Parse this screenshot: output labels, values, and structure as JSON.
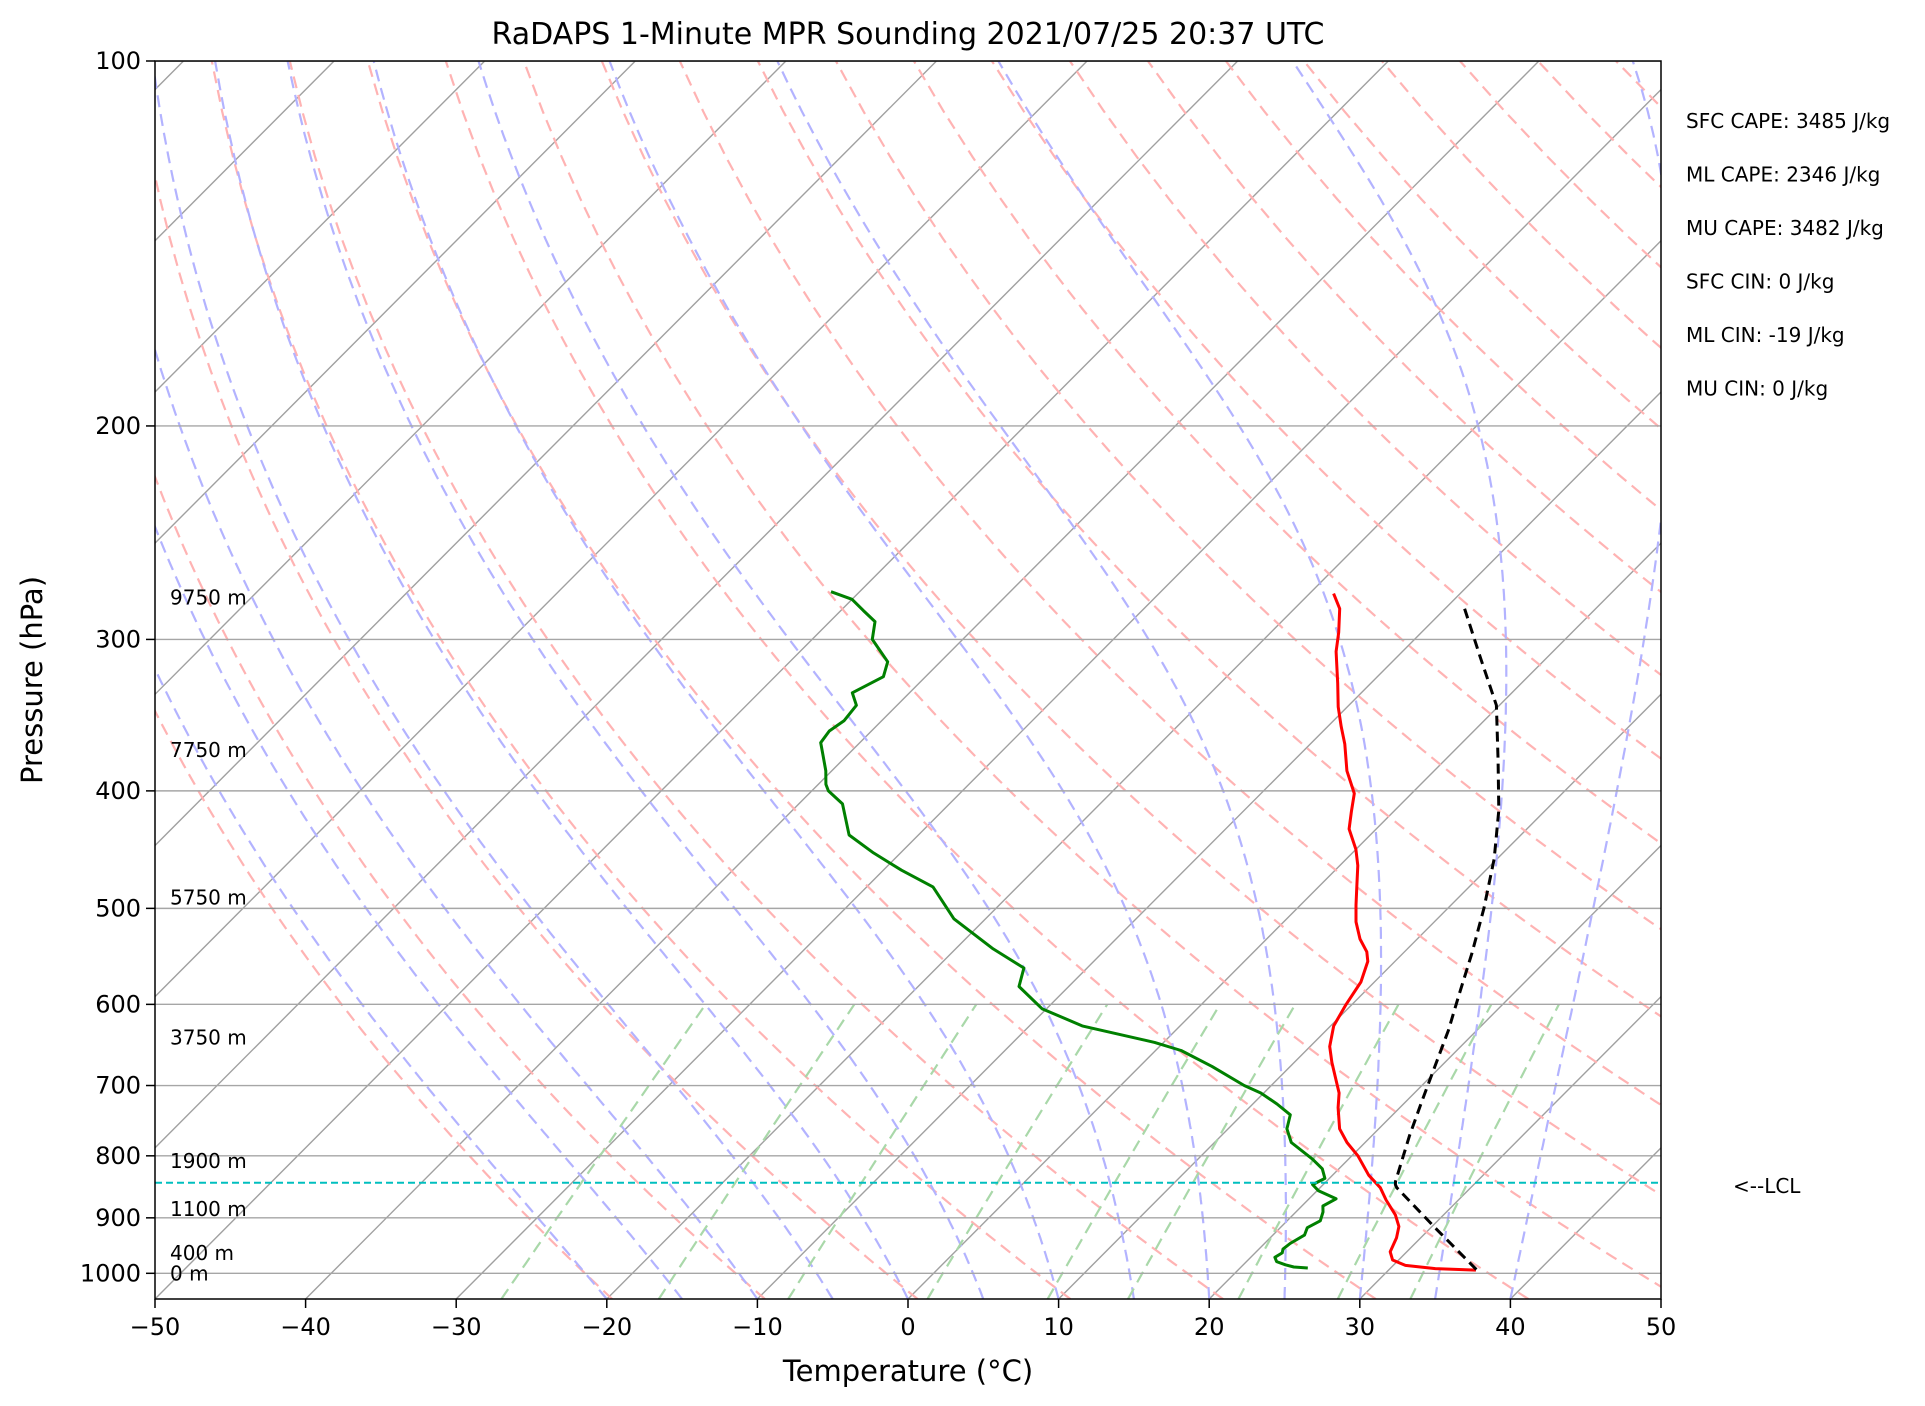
{
  "chart_data": {
    "type": "skew-t",
    "title": "RaDAPS 1-Minute MPR Sounding 2021/07/25 20:37 UTC",
    "xlabel": "Temperature (°C)",
    "ylabel": "Pressure (hPa)",
    "xlim": [
      -50,
      50
    ],
    "ylim": [
      1050,
      100
    ],
    "y_scale": "log",
    "x_ticks": [
      -50,
      -40,
      -30,
      -20,
      -10,
      0,
      10,
      20,
      30,
      40,
      50
    ],
    "x_tick_labels": [
      "−50",
      "−40",
      "−30",
      "−20",
      "−10",
      "0",
      "10",
      "20",
      "30",
      "40",
      "50"
    ],
    "y_ticks": [
      1000,
      900,
      800,
      700,
      600,
      500,
      400,
      300,
      200,
      100
    ],
    "y_tick_labels": [
      "1000",
      "900",
      "800",
      "700",
      "600",
      "500",
      "400",
      "300",
      "200",
      "100"
    ],
    "grid": true,
    "background_lines": {
      "isotherms_color": "#a0a0a0",
      "dry_adiabats_color": "#ffb3b3",
      "moist_adiabats_color": "#b3b3ff",
      "mixing_ratio_color": "#a9d8a9"
    },
    "series": [
      {
        "role": "temperature",
        "color": "#ff0000",
        "points": [
          [
            35.8,
            994
          ],
          [
            33,
            991
          ],
          [
            30.8,
            985
          ],
          [
            29.6,
            975
          ],
          [
            28.9,
            960
          ],
          [
            28.4,
            935
          ],
          [
            27.8,
            915
          ],
          [
            26.8,
            895
          ],
          [
            25.2,
            870
          ],
          [
            24,
            850
          ],
          [
            22.4,
            830
          ],
          [
            20.4,
            800
          ],
          [
            18.8,
            780
          ],
          [
            17.4,
            760
          ],
          [
            15.9,
            730
          ],
          [
            15,
            710
          ],
          [
            14.2,
            697
          ],
          [
            12.5,
            670
          ],
          [
            11.3,
            650
          ],
          [
            10.2,
            625
          ],
          [
            9.6,
            600
          ],
          [
            9.1,
            575
          ],
          [
            8.2,
            553
          ],
          [
            7.5,
            543
          ],
          [
            6.2,
            530
          ],
          [
            4.8,
            513
          ],
          [
            3.7,
            497
          ],
          [
            2.4,
            478
          ],
          [
            1.2,
            461
          ],
          [
            0,
            447
          ],
          [
            -1.8,
            430
          ],
          [
            -2.8,
            416
          ],
          [
            -3.8,
            402
          ],
          [
            -5.8,
            385
          ],
          [
            -7.7,
            366
          ],
          [
            -9.1,
            354
          ],
          [
            -10.6,
            341
          ],
          [
            -12.2,
            326
          ],
          [
            -14.4,
            307
          ],
          [
            -15.5,
            296
          ],
          [
            -17,
            283
          ],
          [
            -18.4,
            275
          ]
        ]
      },
      {
        "role": "dewpoint",
        "color": "#008000",
        "points": [
          [
            24.5,
            990
          ],
          [
            23.5,
            988
          ],
          [
            22.8,
            984
          ],
          [
            22,
            978
          ],
          [
            21.6,
            970
          ],
          [
            21.8,
            962
          ],
          [
            21.6,
            955
          ],
          [
            21.7,
            945
          ],
          [
            22.1,
            930
          ],
          [
            21.8,
            917
          ],
          [
            22.2,
            905
          ],
          [
            21.8,
            890
          ],
          [
            21.4,
            880
          ],
          [
            21.8,
            868
          ],
          [
            20.1,
            855
          ],
          [
            19.3,
            845
          ],
          [
            19.7,
            835
          ],
          [
            18.9,
            820
          ],
          [
            17.6,
            805
          ],
          [
            15.1,
            780
          ],
          [
            13.9,
            760
          ],
          [
            13.2,
            740
          ],
          [
            11.6,
            725
          ],
          [
            9.8,
            710
          ],
          [
            8.2,
            700
          ],
          [
            4.8,
            675
          ],
          [
            1.7,
            655
          ],
          [
            -0.6,
            645
          ],
          [
            -6.5,
            625
          ],
          [
            -10.3,
            605
          ],
          [
            -13.3,
            580
          ],
          [
            -14.2,
            560
          ],
          [
            -17.5,
            540
          ],
          [
            -22.1,
            510
          ],
          [
            -25.6,
            480
          ],
          [
            -28.8,
            465
          ],
          [
            -31.8,
            450
          ],
          [
            -34.6,
            435
          ],
          [
            -37.1,
            410
          ],
          [
            -38.9,
            400
          ],
          [
            -39.5,
            395
          ],
          [
            -40.4,
            385
          ],
          [
            -41.7,
            373
          ],
          [
            -42.6,
            365
          ],
          [
            -42.8,
            357
          ],
          [
            -42.5,
            350
          ],
          [
            -42.7,
            340
          ],
          [
            -43.8,
            332
          ],
          [
            -42.8,
            322
          ],
          [
            -43.5,
            313
          ],
          [
            -46,
            300
          ],
          [
            -47,
            290
          ],
          [
            -48.5,
            284
          ],
          [
            -50,
            278
          ],
          [
            -51.9,
            274
          ]
        ]
      },
      {
        "role": "parcel",
        "color": "#000000",
        "dashed": true,
        "points": [
          [
            35.8,
            993
          ],
          [
            30.5,
            920
          ],
          [
            25.1,
            850
          ],
          [
            24.8,
            845
          ],
          [
            24.6,
            840
          ],
          [
            22.5,
            770
          ],
          [
            21,
            720
          ],
          [
            19.6,
            675
          ],
          [
            18.1,
            630
          ],
          [
            16.5,
            590
          ],
          [
            14.6,
            545
          ],
          [
            12.4,
            500
          ],
          [
            9.8,
            455
          ],
          [
            6.9,
            415
          ],
          [
            3.6,
            378
          ],
          [
            -0.2,
            340
          ],
          [
            -4.5,
            310
          ],
          [
            -8.7,
            283
          ]
        ]
      }
    ],
    "lcl_pressure": 842,
    "lcl_label": "<--LCL",
    "lcl_color": "#00bfbf",
    "height_labels": [
      {
        "text": "9750 m",
        "pressure": 277
      },
      {
        "text": "7750 m",
        "pressure": 370
      },
      {
        "text": "5750 m",
        "pressure": 490
      },
      {
        "text": "3750 m",
        "pressure": 639
      },
      {
        "text": "1900 m",
        "pressure": 808
      },
      {
        "text": "1100 m",
        "pressure": 885
      },
      {
        "text": "400 m",
        "pressure": 962
      },
      {
        "text": "0 m",
        "pressure": 1000
      }
    ],
    "annotations": [
      "SFC CAPE: 3485 J/kg",
      "ML CAPE: 2346 J/kg",
      "MU CAPE: 3482 J/kg",
      "SFC CIN: 0 J/kg",
      "ML CIN: -19 J/kg",
      "MU CIN: 0 J/kg"
    ]
  }
}
